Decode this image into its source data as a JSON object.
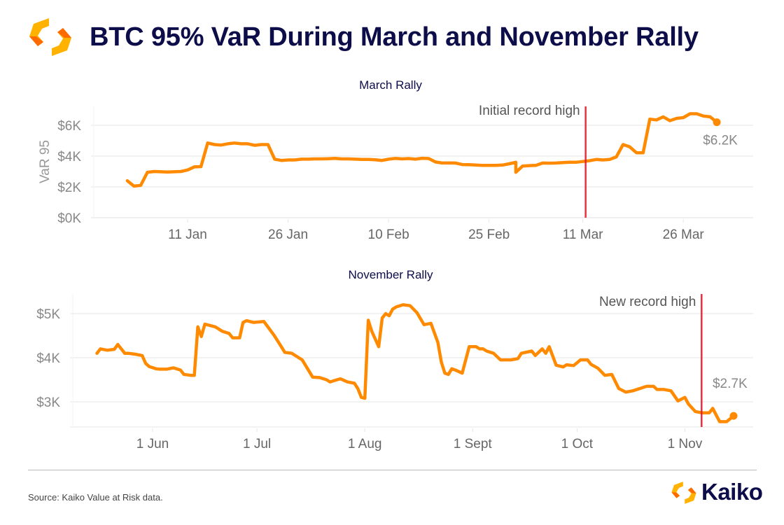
{
  "header": {
    "title": "BTC 95% VaR During March and November Rally",
    "brand_color": "#0d0d4a"
  },
  "colors": {
    "line": "#ff8a00",
    "marker": "#e8192c",
    "grid": "#ebebeb",
    "axis_text": "#888888",
    "annotation_text": "#555555",
    "logo_light": "#ffb300",
    "logo_dark": "#ff6a00"
  },
  "footer": {
    "source": "Source: Kaiko Value at Risk data.",
    "brand_name": "Kaiko"
  },
  "chart_data": [
    {
      "type": "line",
      "title": "March Rally",
      "xlabel": "",
      "ylabel": "VaR 95",
      "year_hint": "2024",
      "x_range": [
        "12-27",
        "04-07"
      ],
      "ylim": [
        0,
        7.2
      ],
      "yticks": [
        0,
        2,
        4,
        6
      ],
      "ytick_labels": [
        "$0K",
        "$2K",
        "$4K",
        "$6K"
      ],
      "xticks": [
        "01-11",
        "01-26",
        "02-10",
        "02-25",
        "03-11",
        "03-26"
      ],
      "xtick_labels": [
        "11 Jan",
        "26 Jan",
        "10 Feb",
        "25 Feb",
        "11 Mar",
        "26 Mar"
      ],
      "grid": true,
      "units": "USD thousands",
      "series": [
        {
          "name": "BTC 95% VaR",
          "x": [
            "01-02",
            "01-03",
            "01-04",
            "01-05",
            "01-06",
            "01-07",
            "01-08",
            "01-09",
            "01-10",
            "01-11",
            "01-12",
            "01-13",
            "01-14",
            "01-15",
            "01-16",
            "01-17",
            "01-18",
            "01-19",
            "01-20",
            "01-21",
            "01-22",
            "01-23",
            "01-24",
            "01-25",
            "01-26",
            "01-27",
            "01-28",
            "01-29",
            "01-30",
            "01-31",
            "02-01",
            "02-02",
            "02-03",
            "02-04",
            "02-05",
            "02-06",
            "02-07",
            "02-08",
            "02-09",
            "02-10",
            "02-11",
            "02-12",
            "02-13",
            "02-14",
            "02-15",
            "02-16",
            "02-17",
            "02-18",
            "02-19",
            "02-20",
            "02-21",
            "02-22",
            "02-23",
            "02-24",
            "02-25",
            "02-26",
            "02-27",
            "02-28",
            "02-29",
            "03-01",
            "03-02",
            "03-03",
            "03-04",
            "03-05",
            "03-06",
            "03-07",
            "03-08",
            "03-09",
            "03-10",
            "03-11",
            "03-12",
            "03-13",
            "03-14",
            "03-15",
            "03-16",
            "03-17",
            "03-18",
            "03-19",
            "03-20",
            "03-21",
            "03-22",
            "03-23",
            "03-24",
            "03-25",
            "03-26",
            "03-27",
            "03-28",
            "03-29",
            "03-30",
            "03-31"
          ],
          "values": [
            2.4,
            2.05,
            2.1,
            2.95,
            3.0,
            2.98,
            2.97,
            2.98,
            3.0,
            3.1,
            3.3,
            3.32,
            4.85,
            4.75,
            4.72,
            4.8,
            4.85,
            4.8,
            4.8,
            4.7,
            4.75,
            4.75,
            3.8,
            3.72,
            3.75,
            3.75,
            3.8,
            3.8,
            3.82,
            3.82,
            3.83,
            3.85,
            3.82,
            3.82,
            3.8,
            3.78,
            3.78,
            3.76,
            3.72,
            3.8,
            3.85,
            3.82,
            3.84,
            3.8,
            3.86,
            3.84,
            3.62,
            3.55,
            3.56,
            3.55,
            3.45,
            3.44,
            3.42,
            3.4,
            3.4,
            3.4,
            3.42,
            3.5,
            3.6,
            2.95,
            3.35,
            3.38,
            3.4,
            3.55,
            3.54,
            3.55,
            3.58,
            3.6,
            3.6,
            3.65,
            3.7,
            3.78,
            3.75,
            3.78,
            3.95,
            4.75,
            4.6,
            4.22,
            4.22,
            6.4,
            6.35,
            6.55,
            6.3,
            6.45,
            6.5,
            6.75,
            6.75,
            6.6,
            6.55,
            6.2
          ]
        }
      ],
      "annotations": [
        {
          "type": "vline",
          "x": "03-11",
          "label": "Initial record high"
        },
        {
          "type": "end-label",
          "x": "03-31",
          "value": 6.2,
          "label": "$6.2K"
        }
      ]
    },
    {
      "type": "line",
      "title": "November Rally",
      "xlabel": "",
      "ylabel": "",
      "x_range": [
        "04-22",
        "11-30"
      ],
      "ylim": [
        2.43,
        5.4
      ],
      "yticks": [
        3,
        4,
        5
      ],
      "ytick_labels": [
        "$3K",
        "$4K",
        "$5K"
      ],
      "xticks": [
        "06-01",
        "07-01",
        "08-01",
        "09-01",
        "10-01",
        "11-01"
      ],
      "xtick_labels": [
        "1 Jun",
        "1 Jul",
        "1 Aug",
        "1 Sept",
        "1 Oct",
        "1 Nov"
      ],
      "grid": true,
      "units": "USD thousands",
      "series": [
        {
          "name": "BTC 95% VaR",
          "x": [
            "05-16",
            "05-17",
            "05-19",
            "05-21",
            "05-22",
            "05-24",
            "05-25",
            "05-27",
            "05-29",
            "05-30",
            "05-31",
            "06-02",
            "06-03",
            "06-05",
            "06-07",
            "06-09",
            "06-10",
            "06-12",
            "06-13",
            "06-14",
            "06-15",
            "06-16",
            "06-19",
            "06-21",
            "06-23",
            "06-24",
            "06-26",
            "06-27",
            "06-28",
            "06-30",
            "07-03",
            "07-06",
            "07-08",
            "07-09",
            "07-11",
            "07-12",
            "07-14",
            "07-17",
            "07-19",
            "07-21",
            "07-22",
            "07-24",
            "07-25",
            "07-27",
            "07-29",
            "07-30",
            "07-31",
            "08-01",
            "08-02",
            "08-03",
            "08-05",
            "08-06",
            "08-07",
            "08-08",
            "08-09",
            "08-10",
            "08-12",
            "08-14",
            "08-16",
            "08-18",
            "08-20",
            "08-22",
            "08-23",
            "08-24",
            "08-25",
            "08-26",
            "08-27",
            "08-29",
            "08-31",
            "09-02",
            "09-03",
            "09-04",
            "09-05",
            "09-07",
            "09-09",
            "09-12",
            "09-14",
            "09-15",
            "09-18",
            "09-19",
            "09-21",
            "09-22",
            "09-23",
            "09-25",
            "09-27",
            "09-28",
            "09-30",
            "10-02",
            "10-04",
            "10-05",
            "10-07",
            "10-09",
            "10-11",
            "10-13",
            "10-15",
            "10-17",
            "10-19",
            "10-21",
            "10-23",
            "10-24",
            "10-26",
            "10-28",
            "10-30",
            "11-01",
            "11-02",
            "11-04",
            "11-06",
            "11-08",
            "11-09",
            "11-11",
            "11-13",
            "11-15"
          ],
          "values": [
            4.1,
            4.2,
            4.17,
            4.19,
            4.3,
            4.1,
            4.1,
            4.08,
            4.05,
            3.87,
            3.8,
            3.75,
            3.74,
            3.74,
            3.77,
            3.72,
            3.62,
            3.6,
            3.6,
            4.7,
            4.48,
            4.76,
            4.7,
            4.6,
            4.55,
            4.45,
            4.45,
            4.8,
            4.84,
            4.8,
            4.82,
            4.5,
            4.25,
            4.12,
            4.1,
            4.05,
            3.95,
            3.56,
            3.55,
            3.5,
            3.45,
            3.5,
            3.52,
            3.45,
            3.42,
            3.3,
            3.1,
            3.08,
            4.85,
            4.6,
            4.25,
            4.9,
            5.0,
            4.95,
            5.1,
            5.15,
            5.2,
            5.18,
            5.02,
            4.75,
            4.78,
            4.35,
            3.9,
            3.65,
            3.62,
            3.75,
            3.72,
            3.65,
            4.25,
            4.25,
            4.2,
            4.2,
            4.15,
            4.1,
            3.95,
            3.95,
            3.98,
            4.1,
            4.15,
            4.05,
            4.2,
            4.1,
            4.25,
            3.83,
            3.79,
            3.84,
            3.82,
            3.95,
            3.95,
            3.85,
            3.76,
            3.6,
            3.62,
            3.3,
            3.22,
            3.25,
            3.3,
            3.35,
            3.35,
            3.28,
            3.28,
            3.25,
            3.02,
            3.1,
            2.95,
            2.78,
            2.75,
            2.75,
            2.85,
            2.55,
            2.55,
            2.68
          ]
        }
      ],
      "annotations": [
        {
          "type": "vline",
          "x": "11-05",
          "label": "New record high"
        },
        {
          "type": "end-label",
          "x": "11-15",
          "value": 2.7,
          "label": "$2.7K"
        }
      ]
    }
  ]
}
